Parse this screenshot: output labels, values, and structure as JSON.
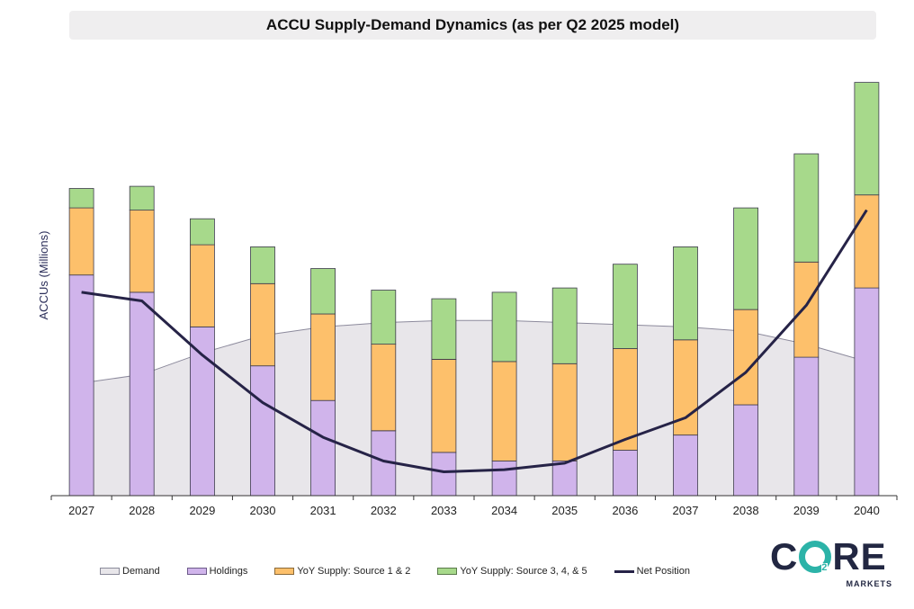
{
  "chart_data": {
    "type": "bar",
    "title": "ACCU Supply-Demand Dynamics (as per Q2 2025 model)",
    "xlabel": "",
    "ylabel": "ACCUs (Millions)",
    "ylim": [
      0,
      100
    ],
    "categories": [
      "2027",
      "2028",
      "2029",
      "2030",
      "2031",
      "2032",
      "2033",
      "2034",
      "2035",
      "2036",
      "2037",
      "2038",
      "2039",
      "2040"
    ],
    "series": [
      {
        "name": "Demand",
        "kind": "area",
        "color": "#e8e6ea",
        "values": [
          26,
          28,
          33,
          37,
          39,
          40,
          40.5,
          40.5,
          40,
          39.5,
          39,
          38,
          35,
          31
        ]
      },
      {
        "name": "Holdings",
        "kind": "stacked-bar",
        "color": "#d0b4eb",
        "values": [
          51,
          47,
          39,
          30,
          22,
          15,
          10,
          8,
          8,
          10.5,
          14,
          21,
          32,
          48
        ]
      },
      {
        "name": "YoY Supply: Source 1 & 2",
        "kind": "stacked-bar",
        "color": "#fdc06b",
        "values": [
          15.5,
          19,
          19,
          19,
          20,
          20,
          21.5,
          23,
          22.5,
          23.5,
          22,
          22,
          22,
          21.5
        ]
      },
      {
        "name": "YoY Supply: Source 3, 4, & 5",
        "kind": "stacked-bar",
        "color": "#a7d98b",
        "values": [
          4.5,
          5.5,
          6,
          8.5,
          10.5,
          12.5,
          14,
          16,
          17.5,
          19.5,
          21.5,
          23.5,
          25,
          26
        ]
      },
      {
        "name": "Net Position",
        "kind": "line",
        "color": "#262347",
        "values": [
          47,
          45,
          32.5,
          21.5,
          13.5,
          8,
          5.5,
          6,
          7.5,
          13,
          18,
          28.5,
          44,
          66
        ]
      }
    ],
    "grid": false,
    "legend": "bottom"
  },
  "branding": {
    "logo_word_left": "C",
    "logo_word_right": "RE",
    "logo_sub_mark": "2",
    "logo_sub": "MARKETS",
    "accent": "#2cb3a8",
    "brand_dark": "#222742"
  }
}
